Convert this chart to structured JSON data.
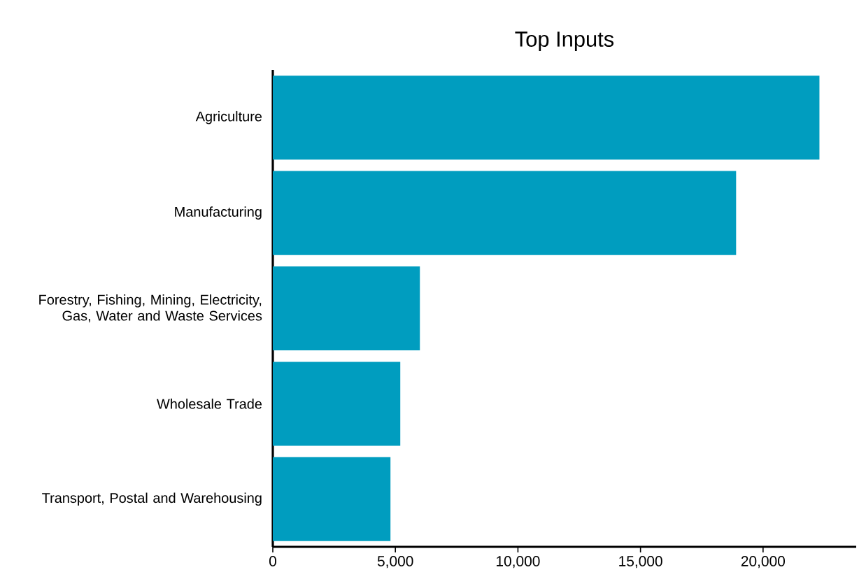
{
  "chart_data": {
    "type": "bar",
    "orientation": "horizontal",
    "title": "Top Inputs",
    "categories": [
      "Agriculture",
      "Manufacturing",
      "Forestry, Fishing, Mining, Electricity, Gas, Water and Waste Services",
      "Wholesale Trade",
      "Transport, Postal and Warehousing"
    ],
    "values": [
      22300,
      18900,
      6000,
      5200,
      4800
    ],
    "color": "#009dbf",
    "xlim": [
      0,
      23800
    ],
    "xticks": [
      0,
      {
        "value": 5000,
        "label": "5,000"
      },
      {
        "value": 10000,
        "label": "10,000"
      },
      {
        "value": 15000,
        "label": "15,000"
      },
      {
        "value": 20000,
        "label": "20,000"
      }
    ],
    "grid": false
  }
}
